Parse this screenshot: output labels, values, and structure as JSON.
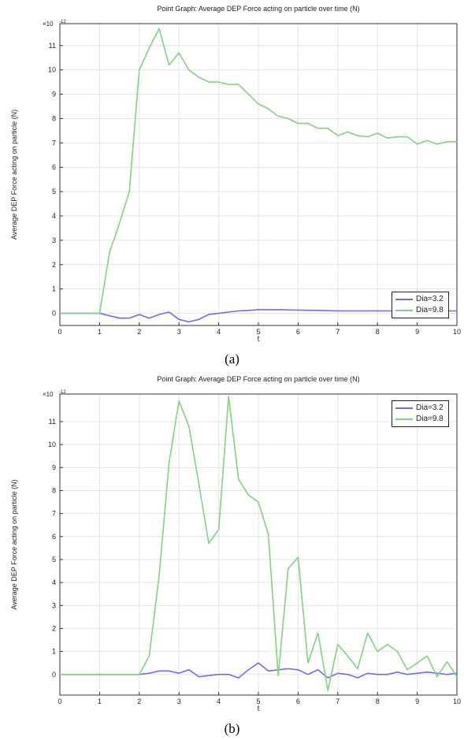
{
  "chart_data": [
    {
      "type": "line",
      "panel_label": "(a)",
      "title": "Point Graph: Average DEP Force acting on particle over time (N)",
      "xlabel": "t",
      "ylabel": "Average DEP Force acting on particle (N)",
      "y_multiplier": "×10",
      "y_exponent": "-12",
      "xlim": [
        0,
        10
      ],
      "ylim": [
        -0.5,
        11.9
      ],
      "x_ticks": [
        "0",
        "1",
        "2",
        "3",
        "4",
        "5",
        "6",
        "7",
        "8",
        "9",
        "10"
      ],
      "y_ticks": [
        "0",
        "1",
        "2",
        "3",
        "4",
        "5",
        "6",
        "7",
        "8",
        "9",
        "10",
        "11"
      ],
      "grid": true,
      "legend_position": "bottom-right",
      "series": [
        {
          "name": "Dia=3.2",
          "color": "#6b6bf5",
          "x": [
            0,
            0.25,
            0.5,
            0.75,
            1,
            1.25,
            1.5,
            1.75,
            2,
            2.25,
            2.5,
            2.75,
            3,
            3.25,
            3.5,
            3.75,
            4,
            4.25,
            4.5,
            4.75,
            5,
            5.5,
            6,
            6.5,
            7,
            7.5,
            8,
            8.5,
            9,
            9.5,
            10
          ],
          "y": [
            0,
            0,
            0,
            0,
            0,
            -0.1,
            -0.2,
            -0.2,
            -0.05,
            -0.2,
            -0.05,
            0.05,
            -0.25,
            -0.35,
            -0.25,
            -0.05,
            0,
            0.05,
            0.1,
            0.12,
            0.15,
            0.15,
            0.13,
            0.12,
            0.1,
            0.1,
            0.1,
            0.1,
            0.1,
            0.1,
            0.1
          ]
        },
        {
          "name": "Dia=9.8",
          "color": "#7fd47f",
          "x": [
            0,
            0.25,
            0.5,
            0.75,
            1,
            1.25,
            1.5,
            1.75,
            2,
            2.25,
            2.5,
            2.75,
            3,
            3.25,
            3.5,
            3.75,
            4,
            4.25,
            4.5,
            4.75,
            5,
            5.25,
            5.5,
            5.75,
            6,
            6.25,
            6.5,
            6.75,
            7,
            7.25,
            7.5,
            7.75,
            8,
            8.25,
            8.5,
            8.75,
            9,
            9.25,
            9.5,
            9.75,
            10
          ],
          "y": [
            0,
            0,
            0,
            0,
            0,
            2.5,
            3.7,
            5,
            10,
            10.9,
            11.7,
            10.2,
            10.7,
            10,
            9.7,
            9.5,
            9.5,
            9.4,
            9.4,
            9,
            8.6,
            8.4,
            8.1,
            8,
            7.8,
            7.8,
            7.6,
            7.6,
            7.3,
            7.45,
            7.3,
            7.25,
            7.4,
            7.2,
            7.25,
            7.25,
            6.95,
            7.1,
            6.95,
            7.05,
            7.05
          ]
        }
      ]
    },
    {
      "type": "line",
      "panel_label": "(b)",
      "title": "Point Graph: Average DEP Force acting on particle over time (N)",
      "xlabel": "t",
      "ylabel": "Average DEP Force acting on particle (N)",
      "y_multiplier": "×10",
      "y_exponent": "-12",
      "xlim": [
        0,
        10
      ],
      "ylim": [
        -0.9,
        12.2
      ],
      "x_ticks": [
        "0",
        "1",
        "2",
        "3",
        "4",
        "5",
        "6",
        "7",
        "8",
        "9",
        "10"
      ],
      "y_ticks": [
        "0",
        "1",
        "2",
        "3",
        "4",
        "5",
        "6",
        "7",
        "8",
        "9",
        "10",
        "11"
      ],
      "grid": true,
      "legend_position": "top-right",
      "series": [
        {
          "name": "Dia=3.2",
          "color": "#6b6bf5",
          "x": [
            0,
            0.5,
            1,
            1.5,
            2,
            2.25,
            2.5,
            2.75,
            3,
            3.25,
            3.5,
            3.75,
            4,
            4.25,
            4.5,
            4.75,
            5,
            5.25,
            5.5,
            5.75,
            6,
            6.25,
            6.5,
            6.75,
            7,
            7.25,
            7.5,
            7.75,
            8,
            8.25,
            8.5,
            8.75,
            9,
            9.25,
            9.5,
            9.75,
            10
          ],
          "y": [
            0,
            0,
            0,
            0,
            0,
            0.05,
            0.15,
            0.15,
            0.05,
            0.2,
            -0.1,
            -0.05,
            0,
            0,
            -0.15,
            0.2,
            0.5,
            0.15,
            0.2,
            0.25,
            0.2,
            0,
            0.2,
            -0.15,
            0.05,
            0,
            -0.15,
            0.05,
            0,
            0,
            0.1,
            0,
            0.05,
            0.1,
            0.05,
            0,
            0.05
          ]
        },
        {
          "name": "Dia=9.8",
          "color": "#7fd47f",
          "x": [
            0,
            0.5,
            1,
            1.5,
            2,
            2.25,
            2.5,
            2.75,
            3,
            3.25,
            3.5,
            3.75,
            4,
            4.25,
            4.5,
            4.75,
            5,
            5.25,
            5.5,
            5.75,
            6,
            6.25,
            6.5,
            6.75,
            7,
            7.25,
            7.5,
            7.75,
            8,
            8.25,
            8.5,
            8.75,
            9,
            9.25,
            9.5,
            9.75,
            10
          ],
          "y": [
            0,
            0,
            0,
            0,
            0,
            0.8,
            4.3,
            9.2,
            11.9,
            10.8,
            8.3,
            5.7,
            6.3,
            12.1,
            8.5,
            7.8,
            7.5,
            6.1,
            -0.05,
            4.6,
            5.1,
            0.5,
            1.8,
            -0.7,
            1.3,
            0.8,
            0.25,
            1.8,
            1,
            1.3,
            1,
            0.2,
            0.5,
            0.8,
            -0.1,
            0.55,
            -0.1
          ]
        }
      ]
    }
  ]
}
